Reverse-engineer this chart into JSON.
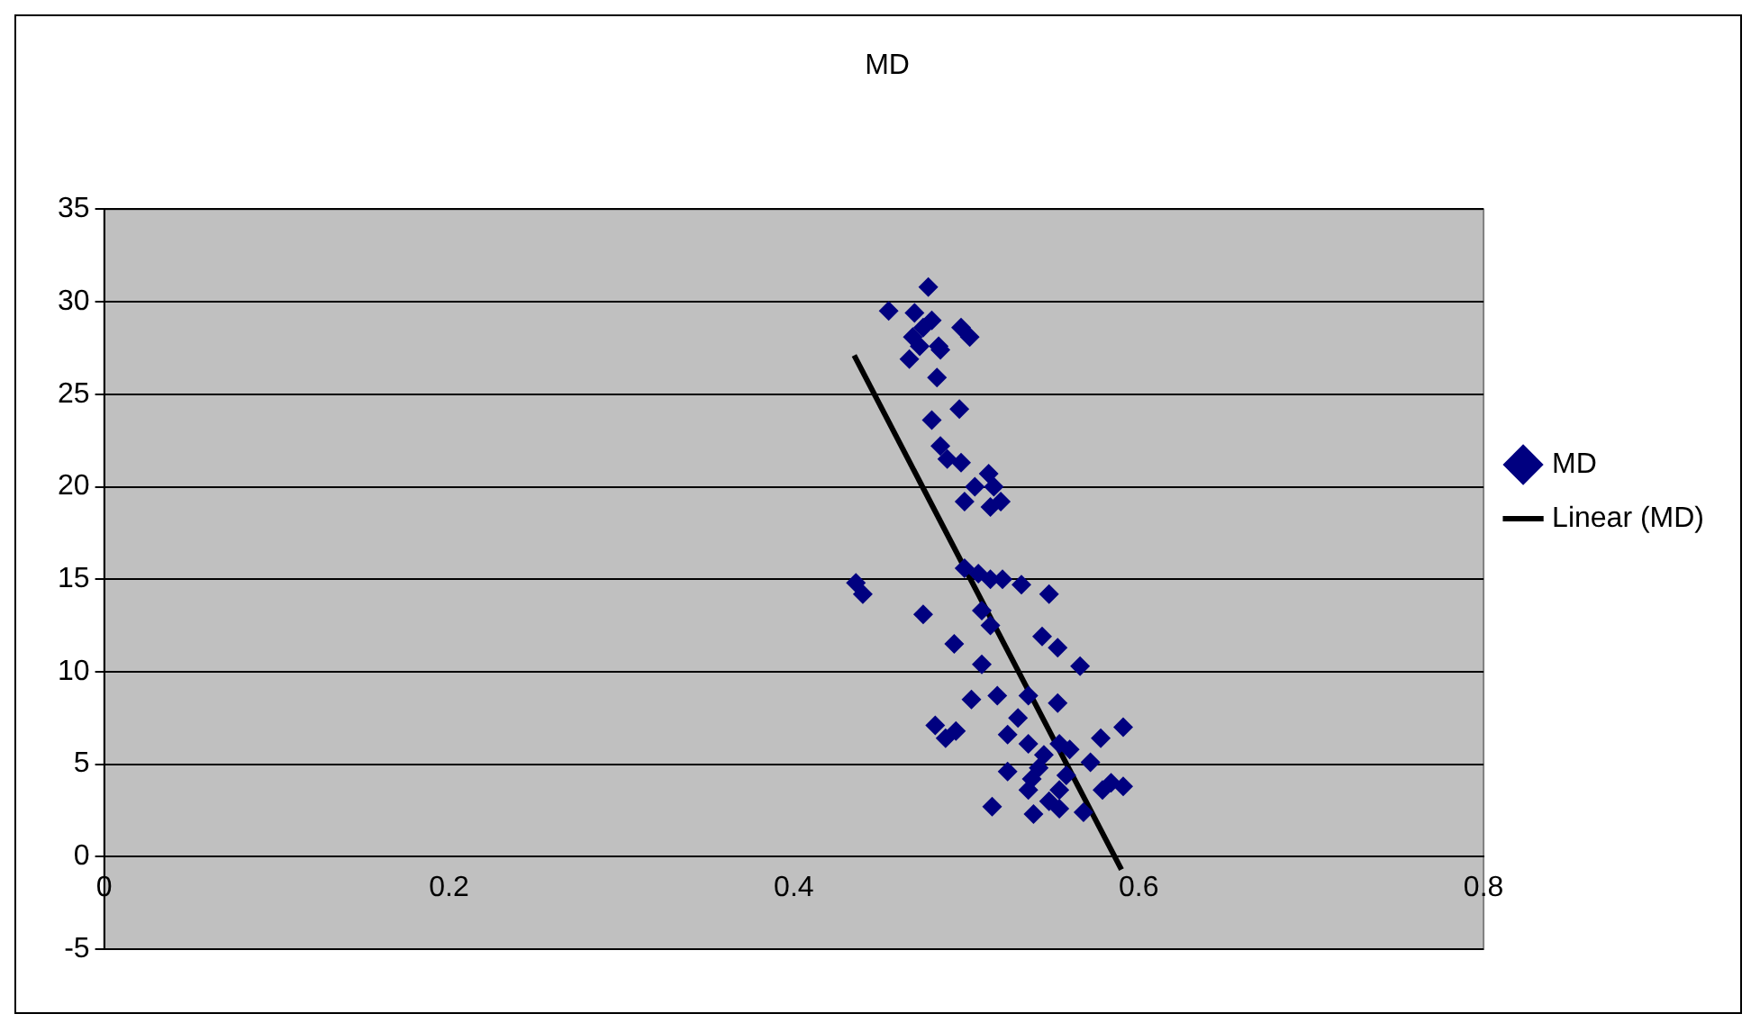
{
  "chart_data": {
    "type": "scatter",
    "title": "MD",
    "xlim": [
      0,
      0.8
    ],
    "xticks": [
      0,
      0.2,
      0.4,
      0.6,
      0.8
    ],
    "ylim": [
      -5,
      35
    ],
    "yticks": [
      -5,
      0,
      5,
      10,
      15,
      20,
      25,
      30,
      35
    ],
    "grid": "y",
    "legend": "right",
    "marker": "diamond",
    "series": [
      {
        "name": "MD",
        "type": "scatter",
        "color": "#000080",
        "x": [
          0.478,
          0.455,
          0.47,
          0.48,
          0.475,
          0.497,
          0.502,
          0.469,
          0.473,
          0.484,
          0.467,
          0.485,
          0.483,
          0.496,
          0.48,
          0.485,
          0.489,
          0.497,
          0.513,
          0.505,
          0.499,
          0.514,
          0.516,
          0.52,
          0.436,
          0.44,
          0.499,
          0.507,
          0.514,
          0.521,
          0.532,
          0.548,
          0.475,
          0.509,
          0.514,
          0.493,
          0.544,
          0.553,
          0.566,
          0.509,
          0.503,
          0.518,
          0.536,
          0.553,
          0.482,
          0.494,
          0.488,
          0.524,
          0.536,
          0.554,
          0.578,
          0.591,
          0.524,
          0.542,
          0.558,
          0.536,
          0.554,
          0.584,
          0.591,
          0.515,
          0.539,
          0.554,
          0.568,
          0.579,
          0.572,
          0.53,
          0.545,
          0.56,
          0.548,
          0.538
        ],
        "values": [
          30.8,
          29.5,
          29.4,
          29,
          28.6,
          28.6,
          28.1,
          28.1,
          27.6,
          27.6,
          26.9,
          27.4,
          25.9,
          24.2,
          23.6,
          22.2,
          21.5,
          21.3,
          20.7,
          20,
          19.2,
          18.9,
          20,
          19.2,
          14.8,
          14.2,
          15.6,
          15.3,
          15,
          15,
          14.7,
          14.2,
          13.1,
          13.3,
          12.5,
          11.5,
          11.9,
          11.3,
          10.3,
          10.4,
          8.5,
          8.7,
          8.7,
          8.3,
          7.1,
          6.8,
          6.4,
          6.6,
          6.1,
          6.1,
          6.4,
          7,
          4.6,
          4.8,
          4.4,
          3.6,
          3.6,
          4,
          3.8,
          2.7,
          2.3,
          2.6,
          2.4,
          3.6,
          5.1,
          7.5,
          5.5,
          5.8,
          3,
          4.2
        ]
      },
      {
        "name": "Linear (MD)",
        "type": "line",
        "marker": "none",
        "color": "#000000",
        "x": [
          0.435,
          0.59
        ],
        "values": [
          27.1,
          -0.7
        ]
      }
    ]
  }
}
